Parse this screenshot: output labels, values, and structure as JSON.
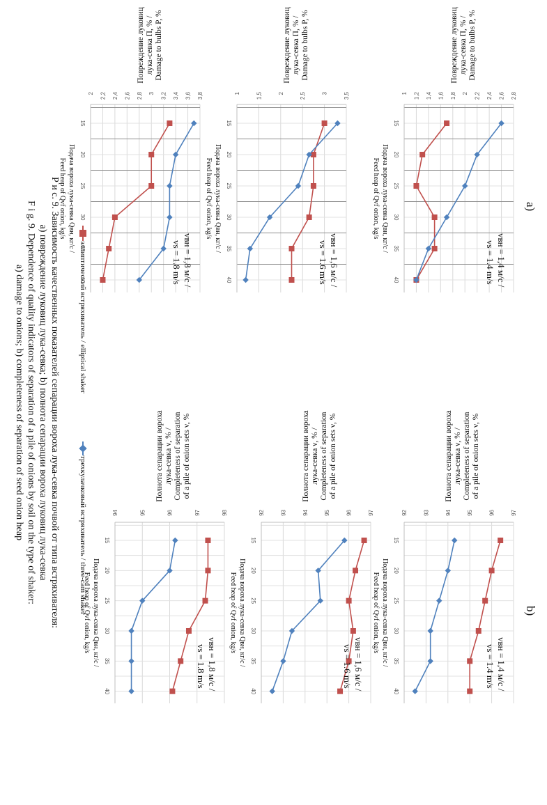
{
  "panels": {
    "a_label": "a)",
    "b_label": "b)"
  },
  "axis_text": {
    "x_label_ru": "Подача вороха лука-севка Qвн, кг/с /",
    "x_label_en": "Feed heap of Qvf onion, kg/s",
    "a_y_label_ru1": "Повреждение луковиц",
    "a_y_label_ru2": "лука-севка П, % /",
    "a_y_label_en": "Damage to bulbs P, %",
    "b_y_label_ru1": "Полнота сепарации вороха",
    "b_y_label_ru2": "лука-севка ν, % /",
    "b_y_label_en1": "Completeness of separation",
    "b_y_label_en2": "of a pile of onion sets ν, %"
  },
  "legend": {
    "elliptical": "эллиптический встряхиватель / elliptical shaker",
    "three_cam": "трехкулачковый встряхиватель / three-cam shaker",
    "elliptical_color": "#c0504d",
    "three_cam_color": "#4f81bd"
  },
  "caption": {
    "line1": "Р и с. 9. Зависимость качественных показателей сепарации вороха лука-севка почвой от типа встряхивателя:",
    "line2": "а) повреждение луковиц лука-севка; b) полнота сепарации вороха луковиц лука-севка",
    "line3": "F i g. 9. Dependence of quality indicators of separation of a pile of onions by soil on the type of shaker:",
    "line4": "a) damage to onions; b) completeness of separation of seed onion heap"
  },
  "chart_data": [
    {
      "id": "a1",
      "type": "line",
      "panel": "a",
      "annotation": [
        "vвн = 1,4 м/с /",
        "vs = 1.4 m/s"
      ],
      "x": [
        15,
        20,
        25,
        30,
        35,
        40
      ],
      "xlim": [
        12,
        42
      ],
      "xticks": [
        15,
        20,
        25,
        30,
        35,
        40
      ],
      "ylim": [
        1,
        2.8
      ],
      "yticks": [
        "1",
        "1,2",
        "1,4",
        "1,6",
        "1,8",
        "2",
        "2,2",
        "2,4",
        "2,6",
        "2,8"
      ],
      "grid": true,
      "series": [
        {
          "name": "elliptical shaker",
          "values": [
            1.7,
            1.3,
            1.2,
            1.5,
            1.5,
            1.2
          ]
        },
        {
          "name": "three-cam shaker",
          "values": [
            2.6,
            2.2,
            2.0,
            1.7,
            1.4,
            1.2
          ]
        }
      ]
    },
    {
      "id": "a2",
      "type": "line",
      "panel": "a",
      "annotation": [
        "vвн = 1,6 м/с /",
        "vs = 1.6 m/s"
      ],
      "x": [
        15,
        20,
        25,
        30,
        35,
        40
      ],
      "xlim": [
        12,
        42
      ],
      "xticks": [
        15,
        20,
        25,
        30,
        35,
        40
      ],
      "ylim": [
        1,
        3.5
      ],
      "yticks": [
        "1",
        "1,5",
        "2",
        "2,5",
        "3",
        "3,5"
      ],
      "grid": true,
      "series": [
        {
          "name": "elliptical shaker",
          "values": [
            3.0,
            2.75,
            2.75,
            2.65,
            2.25,
            2.25
          ]
        },
        {
          "name": "three-cam shaker",
          "values": [
            3.3,
            2.65,
            2.4,
            1.75,
            1.3,
            1.2
          ]
        }
      ]
    },
    {
      "id": "a3",
      "type": "line",
      "panel": "a",
      "annotation": [
        "vвн = 1,8 м/с /",
        "vs = 1.8 m/s"
      ],
      "x": [
        15,
        20,
        25,
        30,
        35,
        40
      ],
      "xlim": [
        12,
        42
      ],
      "xticks": [
        15,
        20,
        25,
        30,
        35,
        40
      ],
      "ylim": [
        2,
        3.8
      ],
      "yticks": [
        "2",
        "2,2",
        "2,4",
        "2,6",
        "2,8",
        "3",
        "3,2",
        "3,4",
        "3,6",
        "3,8"
      ],
      "grid": true,
      "series": [
        {
          "name": "elliptical shaker",
          "values": [
            3.3,
            3.0,
            3.0,
            2.4,
            2.3,
            2.2
          ]
        },
        {
          "name": "three-cam shaker",
          "values": [
            3.7,
            3.4,
            3.3,
            3.3,
            3.2,
            2.8
          ]
        }
      ]
    },
    {
      "id": "b1",
      "type": "line",
      "panel": "b",
      "annotation": [
        "vвн = 1,4 м/с /",
        "vs = 1.4 m/s"
      ],
      "x": [
        15,
        20,
        25,
        30,
        35,
        40
      ],
      "xlim": [
        12,
        42
      ],
      "xticks": [
        15,
        20,
        25,
        30,
        35,
        40
      ],
      "ylim": [
        92,
        97
      ],
      "yticks": [
        "92",
        "93",
        "94",
        "95",
        "96",
        "97"
      ],
      "grid": true,
      "series": [
        {
          "name": "elliptical shaker",
          "values": [
            96.4,
            96.0,
            95.7,
            95.4,
            95.0,
            95.0
          ]
        },
        {
          "name": "three-cam shaker",
          "values": [
            94.3,
            94.0,
            93.6,
            93.2,
            93.2,
            92.5
          ]
        }
      ]
    },
    {
      "id": "b2",
      "type": "line",
      "panel": "b",
      "annotation": [
        "vвн = 1,6 м/с /",
        "vs = 1.6 m/s"
      ],
      "x": [
        15,
        20,
        25,
        30,
        35,
        40
      ],
      "xlim": [
        12,
        42
      ],
      "xticks": [
        15,
        20,
        25,
        30,
        35,
        40
      ],
      "ylim": [
        92,
        97
      ],
      "yticks": [
        "92",
        "93",
        "94",
        "95",
        "96",
        "97"
      ],
      "grid": true,
      "series": [
        {
          "name": "elliptical shaker",
          "values": [
            96.7,
            96.3,
            96.0,
            96.2,
            96.0,
            95.6
          ]
        },
        {
          "name": "three-cam shaker",
          "values": [
            95.8,
            94.6,
            94.7,
            93.4,
            93.0,
            92.5
          ]
        }
      ]
    },
    {
      "id": "b3",
      "type": "line",
      "panel": "b",
      "annotation": [
        "vвн = 1,8 м/с /",
        "vs = 1.8 m/s"
      ],
      "x": [
        15,
        20,
        25,
        30,
        35,
        40
      ],
      "xlim": [
        12,
        42
      ],
      "xticks": [
        15,
        20,
        25,
        30,
        35,
        40
      ],
      "ylim": [
        94,
        98
      ],
      "yticks": [
        "94",
        "95",
        "96",
        "97",
        "98"
      ],
      "grid": true,
      "series": [
        {
          "name": "elliptical shaker",
          "values": [
            97.4,
            97.4,
            97.3,
            96.7,
            96.4,
            96.1
          ]
        },
        {
          "name": "three-cam shaker",
          "values": [
            96.2,
            96.0,
            95.0,
            94.6,
            94.6,
            94.6
          ]
        }
      ]
    }
  ]
}
